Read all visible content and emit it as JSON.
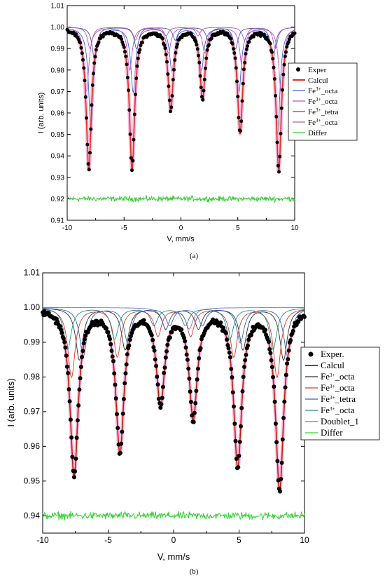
{
  "chart_data": [
    {
      "type": "line",
      "panel_label": "(a)",
      "xlabel": "V, mm/s",
      "ylabel": "I (arb. units)",
      "xlim": [
        -10,
        10
      ],
      "ylim": [
        0.91,
        1.01
      ],
      "x_ticks": [
        -10,
        -5,
        0,
        5,
        10
      ],
      "y_ticks": [
        0.91,
        0.92,
        0.93,
        0.94,
        0.95,
        0.96,
        0.97,
        0.98,
        0.99,
        1.0,
        1.01
      ],
      "y_tick_labels": [
        "0.91",
        "0.92",
        "0.93",
        "0.94",
        "0.95",
        "0.96",
        "0.97",
        "0.98",
        "0.99",
        "1.00",
        "1.01"
      ],
      "legend_position": "right",
      "legend": [
        "Exper",
        "Calcul",
        "Fe3+_octa",
        "Fe3+_octa",
        "Fe3+_tetra",
        "Fe3+_octa",
        "Differ"
      ],
      "differ_baseline": 0.92,
      "peaks": [
        {
          "v": -8.1,
          "depth": 0.066
        },
        {
          "v": -4.3,
          "depth": 0.066
        },
        {
          "v": -0.9,
          "depth": 0.038
        },
        {
          "v": 1.9,
          "depth": 0.033
        },
        {
          "v": 5.2,
          "depth": 0.049
        },
        {
          "v": 8.6,
          "depth": 0.067
        }
      ],
      "series": [
        {
          "name": "Exper",
          "color": "#000000",
          "kind": "points"
        },
        {
          "name": "Calcul",
          "color": "#e03020",
          "kind": "line"
        },
        {
          "name": "Fe3+_octa",
          "color": "#4060d0",
          "kind": "line",
          "lines": [
            [
              -7.9,
              0.05
            ],
            [
              -4.2,
              0.03
            ],
            [
              -0.8,
              0.02
            ],
            [
              1.8,
              0.02
            ],
            [
              5.1,
              0.03
            ],
            [
              8.5,
              0.05
            ]
          ]
        },
        {
          "name": "Fe3+_octa",
          "color": "#c050d0",
          "kind": "line",
          "lines": [
            [
              -8.3,
              0.03
            ],
            [
              -4.5,
              0.02
            ],
            [
              -1.1,
              0.012
            ],
            [
              2.1,
              0.012
            ],
            [
              5.4,
              0.02
            ],
            [
              8.8,
              0.03
            ]
          ]
        },
        {
          "name": "Fe3+_tetra",
          "color": "#5050a0",
          "kind": "line",
          "lines": [
            [
              -7.6,
              0.015
            ],
            [
              -3.9,
              0.01
            ],
            [
              -0.5,
              0.006
            ],
            [
              2.4,
              0.006
            ],
            [
              4.8,
              0.01
            ],
            [
              8.1,
              0.015
            ]
          ]
        },
        {
          "name": "Fe3+_octa",
          "color": "#a060c0",
          "kind": "line",
          "lines": [
            [
              -8.0,
              0.01
            ],
            [
              -4.0,
              0.006
            ],
            [
              -1.3,
              0.004
            ],
            [
              1.5,
              0.004
            ],
            [
              5.6,
              0.006
            ],
            [
              8.3,
              0.01
            ]
          ]
        },
        {
          "name": "Differ",
          "color": "#30d030",
          "kind": "line"
        }
      ]
    },
    {
      "type": "line",
      "panel_label": "(b)",
      "xlabel": "V, mm/s",
      "ylabel": "I (arb. units)",
      "xlim": [
        -10,
        10
      ],
      "ylim": [
        0.935,
        1.01
      ],
      "x_ticks": [
        -10,
        -5,
        0,
        5,
        10
      ],
      "y_ticks": [
        0.94,
        0.95,
        0.96,
        0.97,
        0.98,
        0.99,
        1.0,
        1.01
      ],
      "y_tick_labels": [
        "0.94",
        "0.95",
        "0.96",
        "0.97",
        "0.98",
        "0.99",
        "1.00",
        "1.01"
      ],
      "legend_position": "right",
      "legend": [
        "Exper.",
        "Calcul",
        "Fe3+_octa",
        "Fe3+_octa",
        "Fe3+_tetra",
        "Fe3+_octa",
        "Doublet_1",
        "Differ"
      ],
      "differ_baseline": 0.94,
      "peaks": [
        {
          "v": -7.6,
          "depth": 0.048
        },
        {
          "v": -4.1,
          "depth": 0.041
        },
        {
          "v": -1.0,
          "depth": 0.027
        },
        {
          "v": 1.5,
          "depth": 0.031
        },
        {
          "v": 4.9,
          "depth": 0.045
        },
        {
          "v": 8.1,
          "depth": 0.052
        }
      ],
      "series": [
        {
          "name": "Exper.",
          "color": "#000000",
          "kind": "points"
        },
        {
          "name": "Calcul",
          "color": "#c02010",
          "kind": "line"
        },
        {
          "name": "Fe3+_octa",
          "color": "#303030",
          "kind": "line",
          "lines": [
            [
              -7.2,
              0.015
            ],
            [
              -3.7,
              0.012
            ],
            [
              -0.6,
              0.006
            ],
            [
              1.9,
              0.006
            ],
            [
              5.3,
              0.012
            ],
            [
              8.4,
              0.015
            ]
          ]
        },
        {
          "name": "Fe3+_octa",
          "color": "#d04030",
          "kind": "line",
          "lines": [
            [
              -7.8,
              0.02
            ],
            [
              -4.3,
              0.014
            ],
            [
              -1.2,
              0.008
            ],
            [
              1.3,
              0.008
            ],
            [
              4.6,
              0.014
            ],
            [
              7.9,
              0.02
            ]
          ]
        },
        {
          "name": "Fe3+_tetra",
          "color": "#3060c0",
          "kind": "line",
          "lines": [
            [
              -6.9,
              0.014
            ],
            [
              -3.5,
              0.01
            ],
            [
              -0.3,
              0.005
            ],
            [
              2.2,
              0.005
            ],
            [
              5.1,
              0.01
            ],
            [
              8.7,
              0.014
            ]
          ]
        },
        {
          "name": "Fe3+_octa",
          "color": "#209090",
          "kind": "line",
          "lines": [
            [
              -8.1,
              0.012
            ],
            [
              -4.5,
              0.009
            ],
            [
              -1.5,
              0.005
            ],
            [
              0.9,
              0.005
            ],
            [
              4.3,
              0.009
            ],
            [
              7.6,
              0.012
            ]
          ]
        },
        {
          "name": "Doublet_1",
          "color": "#8070c0",
          "kind": "line",
          "lines": [
            [
              -0.6,
              0.006
            ],
            [
              1.2,
              0.006
            ]
          ]
        },
        {
          "name": "Differ",
          "color": "#30d030",
          "kind": "line"
        }
      ]
    }
  ]
}
